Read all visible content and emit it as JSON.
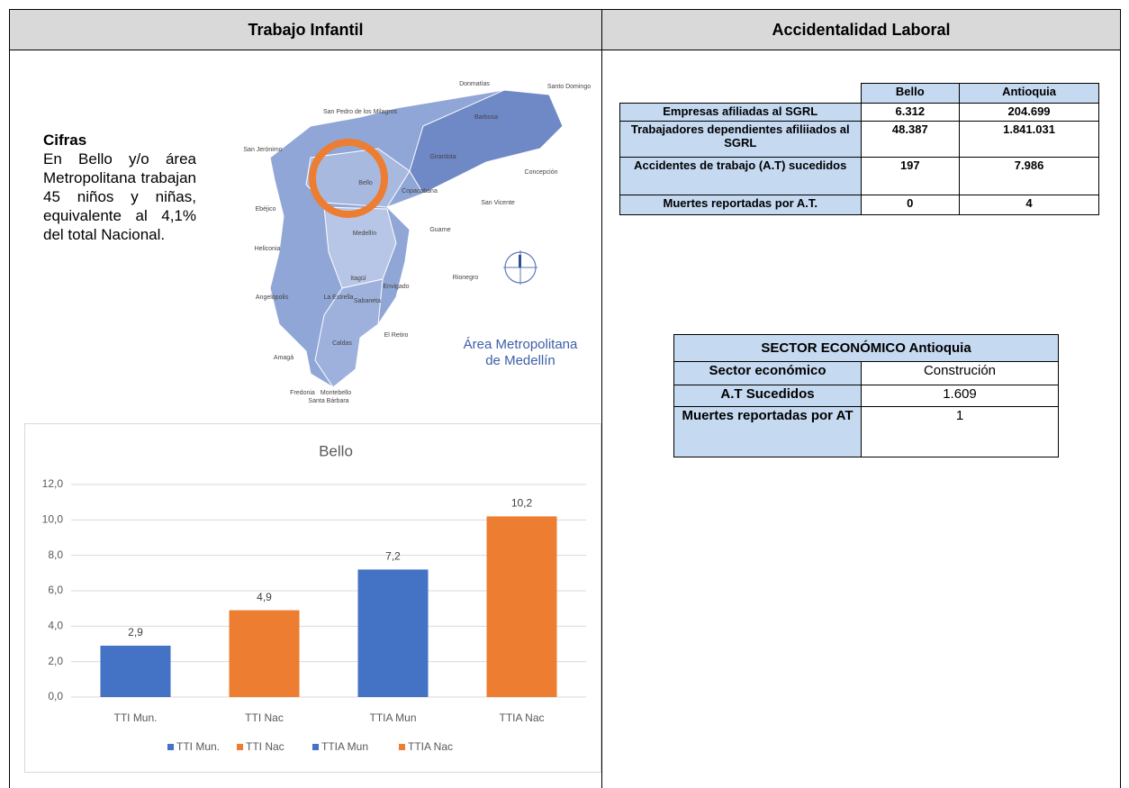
{
  "header": {
    "left": "Trabajo Infantil",
    "right": "Accidentalidad Laboral"
  },
  "cifras": {
    "title": "Cifras",
    "text": "En Bello y/o área Metropolitana trabajan 45 niños y niñas, equivalente al 4,1% del total Nacional."
  },
  "map": {
    "title": [
      "Área Metropolitana",
      "de Medellín"
    ],
    "labels": [
      "Donmatías",
      "Santo Domingo",
      "San Pedro de los Milagros",
      "Barbosa",
      "San Jerónimo",
      "Girardota",
      "Concepción",
      "Bello",
      "Copacabana",
      "San Vicente",
      "Ebéjico",
      "Guarne",
      "Medellín",
      "Heliconia",
      "Rionegro",
      "Itagüí",
      "Envigado",
      "Angelópolis",
      "La Estrella",
      "Sabaneta",
      "El Retiro",
      "Caldas",
      "Amagá",
      "Fredonia",
      "Montebello",
      "Santa Bárbara"
    ]
  },
  "chart_data": {
    "type": "bar",
    "title": "Bello",
    "categories": [
      "TTI Mun.",
      "TTI Nac",
      "TTIA Mun",
      "TTIA Nac"
    ],
    "values": [
      2.9,
      4.9,
      7.2,
      10.2
    ],
    "value_labels": [
      "2,9",
      "4,9",
      "7,2",
      "10,2"
    ],
    "colors": [
      "#4472c4",
      "#ed7d31",
      "#4472c4",
      "#ed7d31"
    ],
    "ylim": [
      0,
      12
    ],
    "yticks": [
      {
        "value": 0,
        "label": "0,0"
      },
      {
        "value": 2,
        "label": "2,0"
      },
      {
        "value": 4,
        "label": "4,0"
      },
      {
        "value": 6,
        "label": "6,0"
      },
      {
        "value": 8,
        "label": "8,0"
      },
      {
        "value": 10,
        "label": "10,0"
      },
      {
        "value": 12,
        "label": "12,0"
      }
    ],
    "grid": true
  },
  "table1": {
    "columns": [
      "Bello",
      "Antioquia"
    ],
    "rows": [
      {
        "label": "Empresas afiliadas al SGRL",
        "values": [
          "6.312",
          "204.699"
        ]
      },
      {
        "label": "Trabajadores dependientes afiliiados al SGRL",
        "values": [
          "48.387",
          "1.841.031"
        ]
      },
      {
        "label": "Accidentes de trabajo (A.T) sucedidos",
        "values": [
          "197",
          "7.986"
        ]
      },
      {
        "label": "Muertes reportadas por A.T.",
        "values": [
          "0",
          "4"
        ]
      }
    ]
  },
  "table2": {
    "title": "SECTOR ECONÓMICO Antioquia",
    "rows": [
      [
        "Sector económico",
        "Construción"
      ],
      [
        "A.T Sucedidos",
        "1.609"
      ],
      [
        "Muertes reportadas por AT",
        "1"
      ]
    ]
  }
}
